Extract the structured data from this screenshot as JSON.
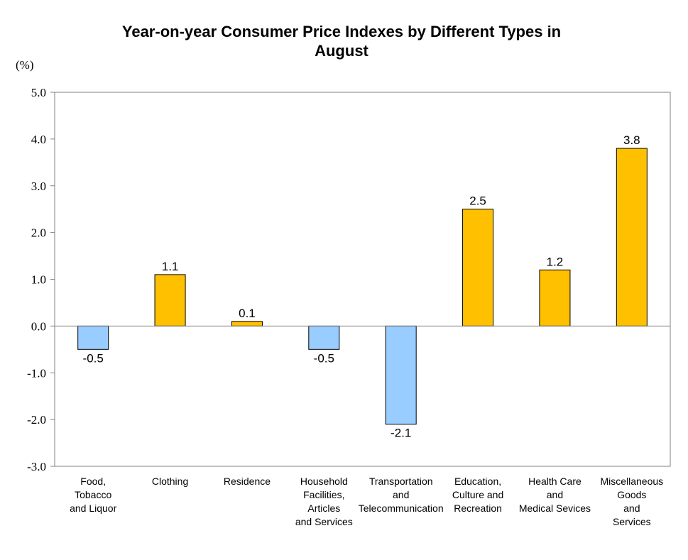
{
  "chart_data": {
    "type": "bar",
    "title": "Year-on-year Consumer Price Indexes by Different Types in August",
    "title_lines": [
      "Year-on-year Consumer Price Indexes by Different Types in",
      "August"
    ],
    "ylabel": "(%)",
    "xlabel": "",
    "ylim": [
      -3.0,
      5.0
    ],
    "yticks": [
      "5.0",
      "4.0",
      "3.0",
      "2.0",
      "1.0",
      "0.0",
      "-1.0",
      "-2.0",
      "-3.0"
    ],
    "ytick_values": [
      5,
      4,
      3,
      2,
      1,
      0,
      -1,
      -2,
      -3
    ],
    "grid": false,
    "legend": "none",
    "categories": [
      "Food, Tobacco and Liquor",
      "Clothing",
      "Residence",
      "Household Facilities, Articles and Services",
      "Transportation and Telecommunication",
      "Education, Culture and Recreation",
      "Health Care and Medical Sevices",
      "Miscellaneous Goods and Services"
    ],
    "category_lines": [
      [
        "Food,",
        "Tobacco",
        "and Liquor"
      ],
      [
        "Clothing"
      ],
      [
        "Residence"
      ],
      [
        "Household",
        "Facilities,",
        "Articles",
        "and Services"
      ],
      [
        "Transportation",
        "and",
        "Telecommunication"
      ],
      [
        "Education,",
        "Culture and",
        "Recreation"
      ],
      [
        "Health Care",
        "and",
        "Medical Sevices"
      ],
      [
        "Miscellaneous",
        "Goods",
        "and",
        "Services"
      ]
    ],
    "values": [
      -0.5,
      1.1,
      0.1,
      -0.5,
      -2.1,
      2.5,
      1.2,
      3.8
    ],
    "value_labels": [
      "-0.5",
      "1.1",
      "0.1",
      "-0.5",
      "-2.1",
      "2.5",
      "1.2",
      "3.8"
    ],
    "colors": {
      "positive": "#FFC000",
      "negative": "#99CCFF",
      "bar_border": "#000000",
      "axis": "#808080"
    }
  }
}
